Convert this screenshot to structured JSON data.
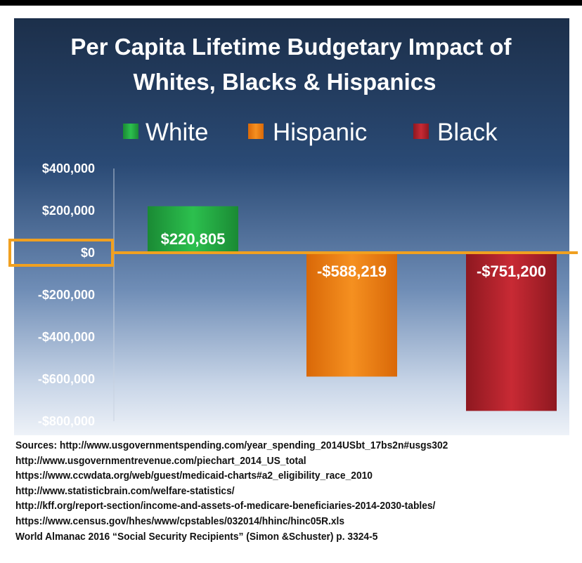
{
  "chart_data": {
    "type": "bar",
    "title_lines": [
      "Per Capita Lifetime Budgetary Impact of",
      "Whites, Blacks & Hispanics"
    ],
    "categories": [
      "White",
      "Hispanic",
      "Black"
    ],
    "values": [
      220805,
      -588219,
      -751200
    ],
    "data_labels": [
      "$220,805",
      "-$588,219",
      "-$751,200"
    ],
    "legend": [
      {
        "name": "White",
        "color": "#22a040"
      },
      {
        "name": "Hispanic",
        "color": "#ee7a10"
      },
      {
        "name": "Black",
        "color": "#b3202a"
      }
    ],
    "ylim": [
      -800000,
      400000
    ],
    "yticks": [
      400000,
      200000,
      0,
      -200000,
      -400000,
      -600000,
      -800000
    ],
    "ytick_labels": [
      "$400,000",
      "$200,000",
      "$0",
      "-$200,000",
      "-$400,000",
      "-$600,000",
      "-$800,000"
    ],
    "highlight": {
      "value": 0,
      "color": "#f0a020"
    },
    "legend_position": "top"
  },
  "sources": [
    "Sources: http://www.usgovernmentspending.com/year_spending_2014USbt_17bs2n#usgs302",
    "http://www.usgovernmentrevenue.com/piechart_2014_US_total",
    "https://www.ccwdata.org/web/guest/medicaid-charts#a2_eligibility_race_2010",
    "http://www.statisticbrain.com/welfare-statistics/",
    "http://kff.org/report-section/income-and-assets-of-medicare-beneficiaries-2014-2030-tables/",
    "https://www.census.gov/hhes/www/cpstables/032014/hhinc/hinc05R.xls",
    "World Almanac 2016 “Social Security Recipients” (Simon &Schuster) p. 3324-5"
  ]
}
